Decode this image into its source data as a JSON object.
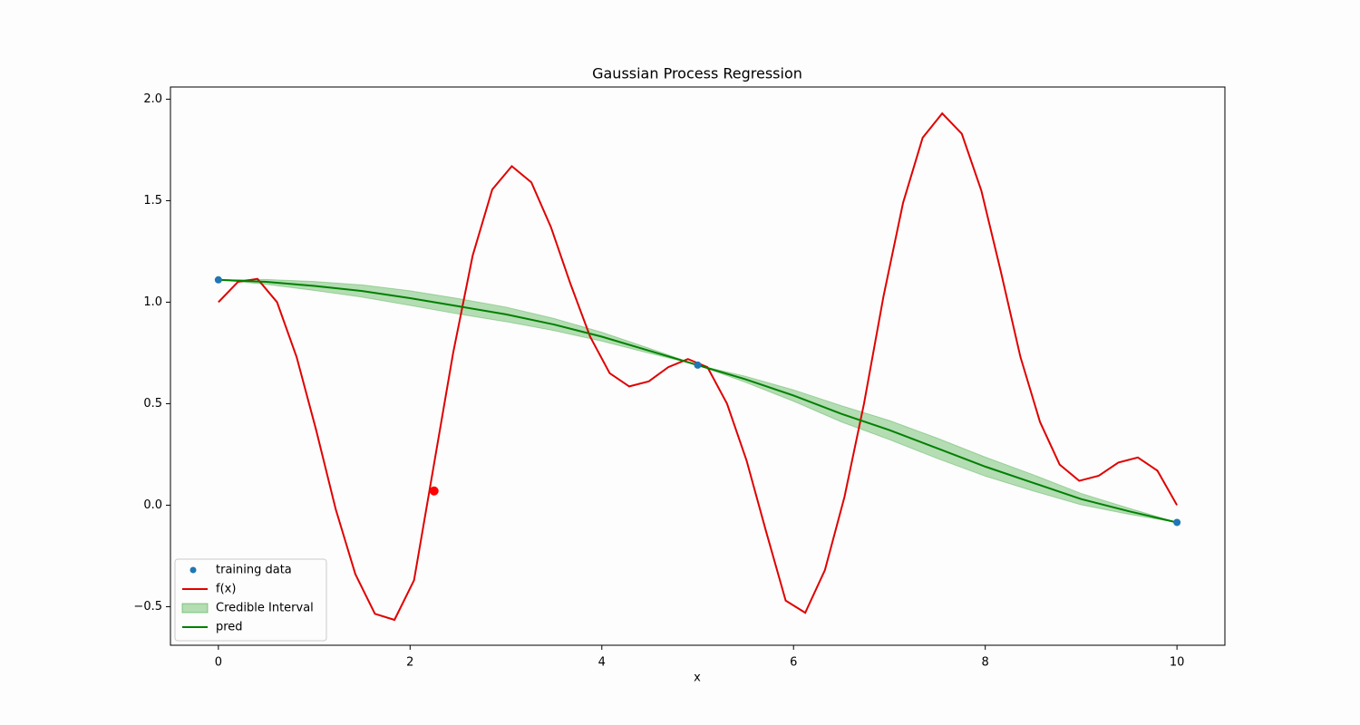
{
  "chart_data": {
    "type": "line",
    "title": "Gaussian Process Regression",
    "x_label": "x",
    "xlim": [
      -0.5,
      10.5
    ],
    "ylim": [
      -0.69,
      2.06
    ],
    "xticks": [
      0,
      2,
      4,
      6,
      8,
      10
    ],
    "yticks": [
      {
        "value": -0.5,
        "label": "−0.5"
      },
      {
        "value": 0,
        "label": "0.0"
      },
      {
        "value": 0.5,
        "label": "0.5"
      },
      {
        "value": 1,
        "label": "1.0"
      },
      {
        "value": 1.5,
        "label": "1.5"
      },
      {
        "value": 2,
        "label": "2.0"
      }
    ],
    "legend": "lower left",
    "series": [
      {
        "name": "training data",
        "kind": "scatter",
        "color": "#1f77b4",
        "x": [
          0,
          5,
          10
        ],
        "values": [
          1.11,
          0.69,
          -0.085
        ]
      },
      {
        "name": "f(x)",
        "kind": "line",
        "color": "#e00000",
        "x": [
          0,
          0.204,
          0.408,
          0.612,
          0.816,
          1.02,
          1.224,
          1.429,
          1.633,
          1.837,
          2.041,
          2.245,
          2.449,
          2.653,
          2.857,
          3.061,
          3.265,
          3.469,
          3.673,
          3.878,
          4.082,
          4.286,
          4.49,
          4.694,
          4.898,
          5.102,
          5.306,
          5.51,
          5.714,
          5.918,
          6.122,
          6.327,
          6.531,
          6.735,
          6.939,
          7.143,
          7.347,
          7.551,
          7.755,
          7.959,
          8.163,
          8.367,
          8.571,
          8.776,
          8.98,
          9.184,
          9.388,
          9.592,
          9.796,
          10
        ],
        "values": [
          1.0,
          1.1,
          1.115,
          1.0,
          0.73,
          0.37,
          -0.02,
          -0.34,
          -0.535,
          -0.565,
          -0.37,
          0.19,
          0.75,
          1.23,
          1.555,
          1.67,
          1.59,
          1.37,
          1.09,
          0.83,
          0.65,
          0.585,
          0.61,
          0.68,
          0.72,
          0.68,
          0.5,
          0.22,
          -0.13,
          -0.47,
          -0.53,
          -0.32,
          0.04,
          0.5,
          1.03,
          1.49,
          1.81,
          1.93,
          1.83,
          1.55,
          1.15,
          0.73,
          0.41,
          0.2,
          0.12,
          0.145,
          0.21,
          0.235,
          0.17,
          0.0
        ]
      },
      {
        "name": "Credible Interval",
        "kind": "band",
        "color": "#2ca02c",
        "x": [
          0,
          0.5,
          1,
          1.5,
          2,
          2.5,
          3,
          3.5,
          4,
          4.5,
          5,
          5.5,
          6,
          6.5,
          7,
          7.5,
          8,
          8.5,
          9,
          9.5,
          10
        ],
        "lower": [
          1.11,
          1.088,
          1.058,
          1.025,
          0.984,
          0.942,
          0.904,
          0.86,
          0.808,
          0.748,
          0.69,
          0.605,
          0.512,
          0.41,
          0.323,
          0.23,
          0.143,
          0.07,
          0.002,
          -0.045,
          -0.085
        ],
        "upper": [
          1.11,
          1.112,
          1.102,
          1.085,
          1.056,
          1.018,
          0.976,
          0.92,
          0.852,
          0.772,
          0.69,
          0.635,
          0.568,
          0.49,
          0.417,
          0.33,
          0.237,
          0.15,
          0.058,
          -0.015,
          -0.085
        ]
      },
      {
        "name": "pred",
        "kind": "line",
        "color": "#008000",
        "x": [
          0,
          0.5,
          1,
          1.5,
          2,
          2.5,
          3,
          3.5,
          4,
          4.5,
          5,
          5.5,
          6,
          6.5,
          7,
          7.5,
          8,
          8.5,
          9,
          9.5,
          10
        ],
        "values": [
          1.11,
          1.1,
          1.08,
          1.055,
          1.02,
          0.98,
          0.94,
          0.89,
          0.83,
          0.76,
          0.69,
          0.62,
          0.54,
          0.45,
          0.37,
          0.28,
          0.19,
          0.11,
          0.03,
          -0.03,
          -0.085
        ]
      }
    ],
    "highlight": {
      "x": 2.25,
      "y": 0.07,
      "color": "#ff0000"
    }
  }
}
